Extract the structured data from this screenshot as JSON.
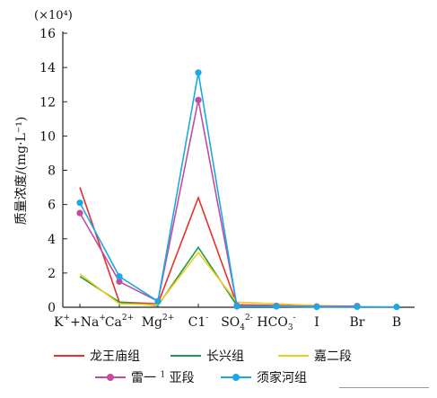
{
  "chart_data": {
    "type": "line",
    "scale_note": "(×10⁴)",
    "ylabel": "质量浓度/(mg·L⁻¹)",
    "ylim": [
      0,
      16
    ],
    "yticks": [
      0,
      2,
      4,
      6,
      8,
      10,
      12,
      14,
      16
    ],
    "categories": [
      {
        "id": "k_na",
        "base": "K",
        "sup": "+",
        "base2": "+Na",
        "sup2": "+",
        "sub": ""
      },
      {
        "id": "ca",
        "base": "Ca",
        "sup": "2+",
        "sub": ""
      },
      {
        "id": "mg",
        "base": "Mg",
        "sup": "2+",
        "sub": ""
      },
      {
        "id": "cl",
        "base": "C1",
        "sup": "-",
        "sub": ""
      },
      {
        "id": "so4",
        "base": "SO",
        "sub": "4",
        "sup": "2-"
      },
      {
        "id": "hco3",
        "base": "HCO",
        "sub": "3",
        "sup": "-"
      },
      {
        "id": "i",
        "base": "I",
        "sup": "",
        "sub": ""
      },
      {
        "id": "br",
        "base": "Br",
        "sup": "",
        "sub": ""
      },
      {
        "id": "b",
        "base": "B",
        "sup": "",
        "sub": ""
      }
    ],
    "series": [
      {
        "name": "龙王庙组",
        "color": "#e8302a",
        "marker": false,
        "values": [
          7.0,
          0.3,
          0.2,
          6.4,
          0.15,
          0.1,
          0.05,
          0.05,
          null
        ]
      },
      {
        "name": "长兴组",
        "color": "#1f9a4a",
        "marker": false,
        "values": [
          1.8,
          0.3,
          0.1,
          3.5,
          0.1,
          0.05,
          0.02,
          0.02,
          null
        ]
      },
      {
        "name": "嘉二段",
        "color": "#f2cc1a",
        "marker": false,
        "values": [
          1.95,
          0.2,
          0.15,
          3.2,
          0.3,
          0.2,
          0.1,
          0.05,
          null
        ]
      },
      {
        "name": "雷一",
        "name_sup": "1",
        "name_suffix": "亚段",
        "color": "#c24d9e",
        "marker": true,
        "values": [
          5.5,
          1.5,
          0.35,
          12.1,
          0.1,
          0.08,
          0.05,
          0.07,
          null
        ]
      },
      {
        "name": "须家河组",
        "color": "#1aa9e6",
        "marker": true,
        "values": [
          6.1,
          1.8,
          0.35,
          13.7,
          0.05,
          0.05,
          0.02,
          0.03,
          0.02
        ]
      }
    ]
  }
}
